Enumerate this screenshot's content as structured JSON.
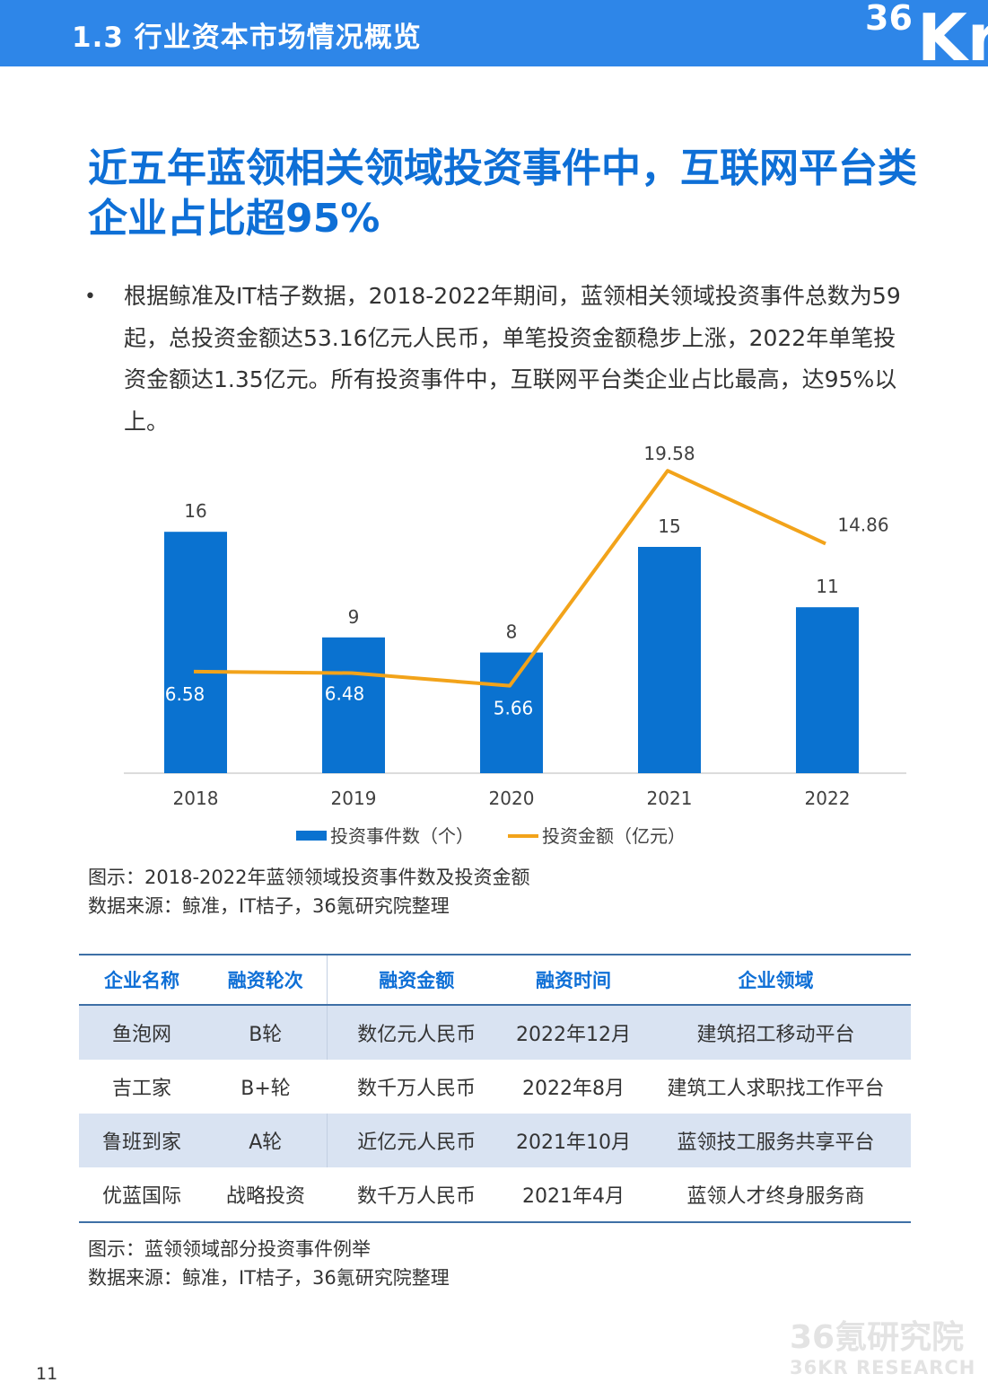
{
  "header": {
    "section_title": "1.3 行业资本市场情况概览",
    "logo": "36Kr"
  },
  "headline": "近五年蓝领相关领域投资事件中，互联网平台类企业占比超95%",
  "bullet": {
    "symbol": "•",
    "text": "根据鲸准及IT桔子数据，2018-2022年期间，蓝领相关领域投资事件总数为59起，总投资金额达53.16亿元人民币，单笔投资金额稳步上涨，2022年单笔投资金额达1.35亿元。所有投资事件中，互联网平台类企业占比最高，达95%以上。"
  },
  "chart_data": {
    "type": "bar",
    "categories": [
      "2018",
      "2019",
      "2020",
      "2021",
      "2022"
    ],
    "series": [
      {
        "name": "投资事件数（个）",
        "type": "bar",
        "values": [
          16,
          9,
          8,
          15,
          11
        ],
        "color": "#0a72d0"
      },
      {
        "name": "投资金额（亿元）",
        "type": "line",
        "values": [
          6.58,
          6.48,
          5.66,
          19.58,
          14.86
        ],
        "color": "#f2a31a"
      }
    ],
    "legend_position": "bottom",
    "grid": false
  },
  "chart_caption": {
    "title": "图示：2018-2022年蓝领领域投资事件数及投资金额",
    "source": "数据来源：鲸准，IT桔子，36氪研究院整理"
  },
  "table": {
    "headers": [
      "企业名称",
      "融资轮次",
      "融资金额",
      "融资时间",
      "企业领域"
    ],
    "rows": [
      [
        "鱼泡网",
        "B轮",
        "数亿元人民币",
        "2022年12月",
        "建筑招工移动平台"
      ],
      [
        "吉工家",
        "B+轮",
        "数千万人民币",
        "2022年8月",
        "建筑工人求职找工作平台"
      ],
      [
        "鲁班到家",
        "A轮",
        "近亿元人民币",
        "2021年10月",
        "蓝领技工服务共享平台"
      ],
      [
        "优蓝国际",
        "战略投资",
        "数千万人民币",
        "2021年4月",
        "蓝领人才终身服务商"
      ]
    ]
  },
  "table_caption": {
    "title": "图示：蓝领领域部分投资事件例举",
    "source": "数据来源：鲸准，IT桔子，36氪研究院整理"
  },
  "watermark": {
    "line1": "36氪研究院",
    "line2": "36KR RESEARCH"
  },
  "page_number": "11"
}
